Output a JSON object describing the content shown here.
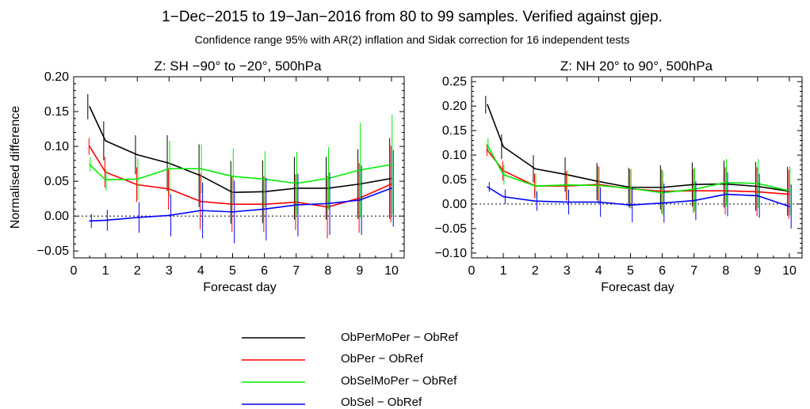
{
  "figure": {
    "title": "1−Dec−2015 to 19−Jan−2016 from 80 to 99 samples. Verified against gjep.",
    "subtitle": "Confidence range 95% with AR(2) inflation and Sidak correction for 16 independent tests"
  },
  "legend": [
    {
      "label": "ObPerMoPer − ObRef",
      "color": "#000000"
    },
    {
      "label": "ObPer − ObRef",
      "color": "#ff0000"
    },
    {
      "label": "ObSelMoPer − ObRef",
      "color": "#00ee00"
    },
    {
      "label": "ObSel − ObRef",
      "color": "#0000ff"
    }
  ],
  "chart_data": [
    {
      "type": "line",
      "title": "Z: SH −90° to −20°, 500hPa",
      "xlabel": "Forecast day",
      "ylabel": "Normalised difference",
      "xlim": [
        0,
        10.4
      ],
      "ylim": [
        -0.06,
        0.2
      ],
      "xticks": [
        0,
        1,
        2,
        3,
        4,
        5,
        6,
        7,
        8,
        9,
        10
      ],
      "yticks": [
        -0.05,
        0.0,
        0.05,
        0.1,
        0.15,
        0.2
      ],
      "ytick_labels": [
        "−0.05",
        "0.00",
        "0.05",
        "0.10",
        "0.15",
        "0.20"
      ],
      "zero_line": "dotted",
      "grid": false,
      "x": [
        0.5,
        1,
        2,
        3,
        4,
        5,
        6,
        7,
        8,
        9,
        10
      ],
      "series": [
        {
          "name": "ObPerMoPer − ObRef",
          "color": "#000000",
          "values": [
            0.157,
            0.108,
            0.088,
            0.076,
            0.058,
            0.034,
            0.035,
            0.04,
            0.04,
            0.046,
            0.054
          ],
          "err": [
            0.018,
            0.028,
            0.028,
            0.04,
            0.045,
            0.045,
            0.045,
            0.045,
            0.045,
            0.05,
            0.058
          ]
        },
        {
          "name": "ObPer − ObRef",
          "color": "#ff0000",
          "values": [
            0.1,
            0.063,
            0.045,
            0.039,
            0.021,
            0.017,
            0.017,
            0.02,
            0.013,
            0.026,
            0.046
          ],
          "err": [
            0.012,
            0.022,
            0.025,
            0.03,
            0.04,
            0.04,
            0.04,
            0.04,
            0.045,
            0.05,
            0.055
          ]
        },
        {
          "name": "ObSelMoPer − ObRef",
          "color": "#00ee00",
          "values": [
            0.074,
            0.052,
            0.053,
            0.068,
            0.068,
            0.057,
            0.053,
            0.047,
            0.054,
            0.066,
            0.074
          ],
          "err": [
            0.01,
            0.015,
            0.03,
            0.04,
            0.035,
            0.04,
            0.04,
            0.045,
            0.045,
            0.068,
            0.072
          ]
        },
        {
          "name": "ObSel − ObRef",
          "color": "#0000ff",
          "values": [
            -0.007,
            -0.006,
            -0.002,
            0.001,
            0.008,
            0.006,
            0.01,
            0.016,
            0.018,
            0.023,
            0.04
          ],
          "err": [
            0.01,
            0.015,
            0.022,
            0.03,
            0.04,
            0.045,
            0.045,
            0.045,
            0.045,
            0.05,
            0.055
          ]
        }
      ]
    },
    {
      "type": "line",
      "title": "Z: NH 20° to 90°, 500hPa",
      "xlabel": "Forecast day",
      "ylabel": "",
      "xlim": [
        0,
        10.4
      ],
      "ylim": [
        -0.11,
        0.26
      ],
      "xticks": [
        0,
        1,
        2,
        3,
        4,
        5,
        6,
        7,
        8,
        9,
        10
      ],
      "yticks": [
        -0.1,
        -0.05,
        0.0,
        0.05,
        0.1,
        0.15,
        0.2,
        0.25
      ],
      "ytick_labels": [
        "−0.10",
        "−0.05",
        "0.00",
        "0.05",
        "0.10",
        "0.15",
        "0.20",
        "0.25"
      ],
      "zero_line": "dotted",
      "grid": false,
      "x": [
        0.5,
        1,
        2,
        3,
        4,
        5,
        6,
        7,
        8,
        9,
        10
      ],
      "series": [
        {
          "name": "ObPerMoPer − ObRef",
          "color": "#000000",
          "values": [
            0.203,
            0.117,
            0.072,
            0.06,
            0.046,
            0.034,
            0.034,
            0.04,
            0.041,
            0.036,
            0.026
          ],
          "err": [
            0.018,
            0.025,
            0.028,
            0.035,
            0.038,
            0.04,
            0.045,
            0.045,
            0.048,
            0.05,
            0.05
          ]
        },
        {
          "name": "ObPer − ObRef",
          "color": "#ff0000",
          "values": [
            0.11,
            0.068,
            0.037,
            0.037,
            0.04,
            0.031,
            0.026,
            0.027,
            0.027,
            0.025,
            0.02
          ],
          "err": [
            0.012,
            0.02,
            0.025,
            0.03,
            0.038,
            0.04,
            0.045,
            0.045,
            0.048,
            0.05,
            0.05
          ]
        },
        {
          "name": "ObSelMoPer − ObRef",
          "color": "#00ee00",
          "values": [
            0.12,
            0.06,
            0.037,
            0.039,
            0.038,
            0.032,
            0.023,
            0.03,
            0.044,
            0.042,
            0.027
          ],
          "err": [
            0.015,
            0.02,
            0.025,
            0.03,
            0.038,
            0.04,
            0.045,
            0.045,
            0.048,
            0.05,
            0.05
          ]
        },
        {
          "name": "ObSel − ObRef",
          "color": "#0000ff",
          "values": [
            0.035,
            0.015,
            0.006,
            0.004,
            0.004,
            -0.002,
            0.002,
            0.007,
            0.02,
            0.017,
            -0.005
          ],
          "err": [
            0.01,
            0.015,
            0.02,
            0.025,
            0.03,
            0.035,
            0.04,
            0.04,
            0.045,
            0.045,
            0.045
          ]
        }
      ]
    }
  ]
}
